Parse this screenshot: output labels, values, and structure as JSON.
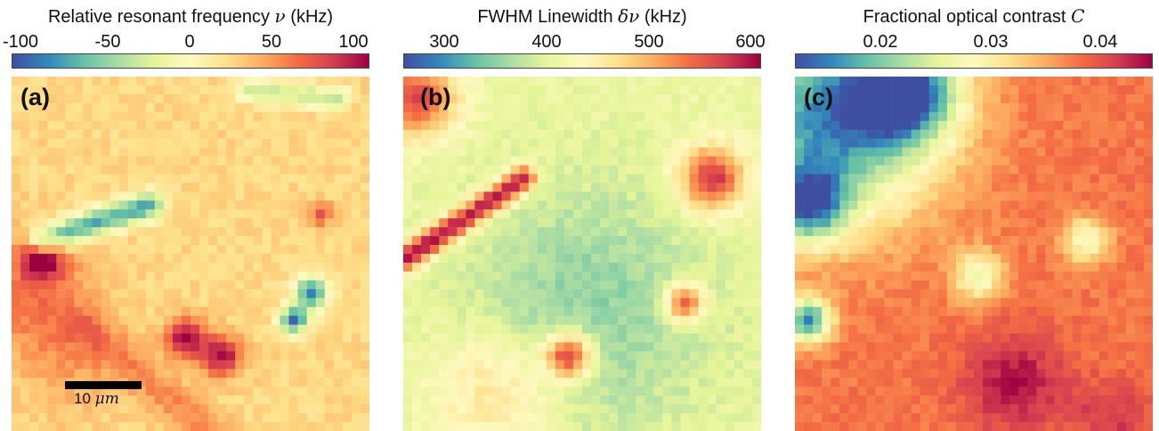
{
  "colormap": [
    "#3e4fa2",
    "#3288bd",
    "#66c2a5",
    "#abdda4",
    "#e6f598",
    "#fff9c0",
    "#fee08b",
    "#fdae61",
    "#f46d43",
    "#d53e4f",
    "#9e0142"
  ],
  "scale_bar": {
    "label_value": "10 ",
    "label_unit": "μm"
  },
  "chart_data": [
    {
      "type": "heatmap",
      "panel_label": "(a)",
      "title": "Relative resonant frequency",
      "title_symbol": "ν",
      "title_unit": "(kHz)",
      "colorbar_ticks": [
        "-100",
        "-50",
        "0",
        "50",
        "100"
      ],
      "colorbar_range": [
        -110,
        110
      ],
      "grid": [
        40,
        40
      ],
      "baseline": 25,
      "features": [
        {
          "kind": "line",
          "from": [
            3,
            18
          ],
          "to": [
            15,
            14
          ],
          "value": -75,
          "width": 1.1
        },
        {
          "kind": "line",
          "from": [
            26,
            1
          ],
          "to": [
            36,
            2
          ],
          "value": -35,
          "width": 0.9
        },
        {
          "kind": "blob",
          "at": [
            3,
            20
          ],
          "value": 110,
          "radius": 1.6
        },
        {
          "kind": "blob",
          "at": [
            2,
            24
          ],
          "value": 65,
          "radius": 4.5
        },
        {
          "kind": "blob",
          "at": [
            19,
            29
          ],
          "value": 110,
          "radius": 1.6
        },
        {
          "kind": "blob",
          "at": [
            23,
            31
          ],
          "value": 105,
          "radius": 1.6
        },
        {
          "kind": "blob",
          "at": [
            33,
            24
          ],
          "value": -90,
          "radius": 1.3
        },
        {
          "kind": "blob",
          "at": [
            31,
            27
          ],
          "value": -95,
          "radius": 1.1
        },
        {
          "kind": "blob",
          "at": [
            34,
            15
          ],
          "value": 75,
          "radius": 1.0
        },
        {
          "kind": "line",
          "from": [
            8,
            28
          ],
          "to": [
            22,
            40
          ],
          "value": 55,
          "width": 1.6
        },
        {
          "kind": "blob",
          "at": [
            6,
            32
          ],
          "value": 45,
          "radius": 4.0
        }
      ]
    },
    {
      "type": "heatmap",
      "panel_label": "(b)",
      "title": "FWHM Linewidth",
      "title_symbol": "δν",
      "title_unit": "(kHz)",
      "colorbar_ticks": [
        "300",
        "400",
        "500",
        "600"
      ],
      "colorbar_range": [
        250,
        600
      ],
      "grid": [
        40,
        40
      ],
      "baseline": 400,
      "features": [
        {
          "kind": "line",
          "from": [
            0,
            20
          ],
          "to": [
            13,
            11
          ],
          "value": 600,
          "width": 1.0
        },
        {
          "kind": "blob",
          "at": [
            1,
            2
          ],
          "value": 560,
          "radius": 3.0
        },
        {
          "kind": "blob",
          "at": [
            34,
            11
          ],
          "value": 580,
          "radius": 2.5
        },
        {
          "kind": "blob",
          "at": [
            18,
            31
          ],
          "value": 590,
          "radius": 1.8
        },
        {
          "kind": "blob",
          "at": [
            31,
            25
          ],
          "value": 570,
          "radius": 1.5
        },
        {
          "kind": "blob",
          "at": [
            20,
            26
          ],
          "value": 340,
          "radius": 10.0
        },
        {
          "kind": "blob",
          "at": [
            10,
            35
          ],
          "value": 470,
          "radius": 5.0
        }
      ]
    },
    {
      "type": "heatmap",
      "panel_label": "(c)",
      "title": "Fractional optical contrast",
      "title_symbol": "C",
      "title_unit": "",
      "colorbar_ticks": [
        "0.02",
        "0.03",
        "0.04"
      ],
      "colorbar_range": [
        0.012,
        0.045
      ],
      "grid": [
        40,
        40
      ],
      "baseline": 0.038,
      "features": [
        {
          "kind": "blob",
          "at": [
            4,
            4
          ],
          "value": 0.015,
          "radius": 8.0
        },
        {
          "kind": "blob",
          "at": [
            12,
            1
          ],
          "value": 0.018,
          "radius": 4.0
        },
        {
          "kind": "blob",
          "at": [
            1,
            14
          ],
          "value": 0.019,
          "radius": 3.0
        },
        {
          "kind": "blob",
          "at": [
            1,
            27
          ],
          "value": 0.016,
          "radius": 1.8
        },
        {
          "kind": "blob",
          "at": [
            20,
            22
          ],
          "value": 0.027,
          "radius": 2.0
        },
        {
          "kind": "blob",
          "at": [
            32,
            18
          ],
          "value": 0.027,
          "radius": 1.8
        },
        {
          "kind": "blob",
          "at": [
            24,
            34
          ],
          "value": 0.044,
          "radius": 4.0
        },
        {
          "kind": "blob",
          "at": [
            35,
            38
          ],
          "value": 0.042,
          "radius": 3.0
        }
      ]
    }
  ]
}
